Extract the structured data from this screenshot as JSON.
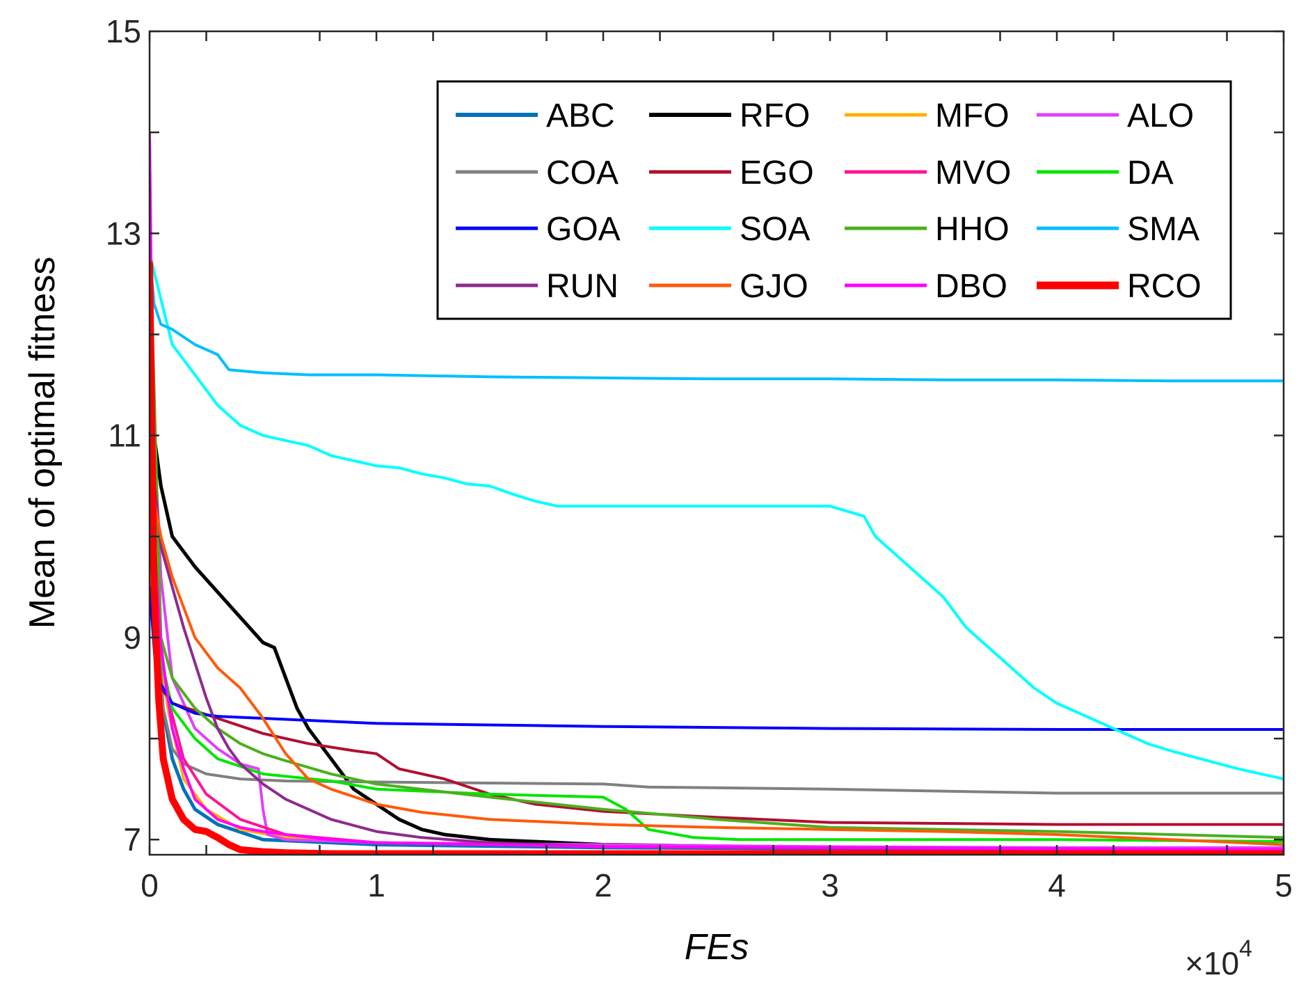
{
  "chart_data": {
    "type": "line",
    "title": "",
    "xlabel": "FEs",
    "ylabel": "Mean of optimal fitness",
    "x_exponent_label": "×10",
    "x_exponent_power": "4",
    "xlim": [
      0,
      5
    ],
    "ylim": [
      6.85,
      15
    ],
    "xticks": [
      0,
      1,
      2,
      3,
      4,
      5
    ],
    "xtick_labels": [
      "0",
      "1",
      "2",
      "3",
      "4",
      "5"
    ],
    "yticks": [
      7,
      9,
      11,
      13,
      15
    ],
    "ytick_labels": [
      "7",
      "9",
      "11",
      "13",
      "15"
    ],
    "ytick_minor": [
      8,
      10,
      12,
      14
    ],
    "grid": false,
    "legend_position": "top-right",
    "legend_columns": 4,
    "series": [
      {
        "name": "ABC",
        "color": "#0072BD",
        "width": 5,
        "x": [
          0,
          0.02,
          0.05,
          0.1,
          0.15,
          0.2,
          0.3,
          0.5,
          1,
          2,
          3,
          4,
          5
        ],
        "y": [
          11.5,
          9.5,
          8.4,
          7.8,
          7.5,
          7.3,
          7.15,
          7.0,
          6.95,
          6.92,
          6.91,
          6.9,
          6.9
        ]
      },
      {
        "name": "RFO",
        "color": "#000000",
        "width": 5,
        "x": [
          0,
          0.02,
          0.05,
          0.1,
          0.2,
          0.3,
          0.4,
          0.5,
          0.55,
          0.6,
          0.65,
          0.7,
          0.8,
          0.9,
          1.0,
          1.1,
          1.2,
          1.3,
          1.5,
          2,
          3,
          4,
          5
        ],
        "y": [
          12.0,
          11.0,
          10.5,
          10.0,
          9.7,
          9.45,
          9.2,
          8.95,
          8.9,
          8.6,
          8.3,
          8.1,
          7.8,
          7.5,
          7.35,
          7.2,
          7.1,
          7.05,
          7.0,
          6.95,
          6.92,
          6.91,
          6.9
        ]
      },
      {
        "name": "MFO",
        "color": "#FFB000",
        "width": 4,
        "x": [
          0,
          0.03,
          0.08,
          0.15,
          0.25,
          0.4,
          0.6,
          1,
          2,
          3,
          4,
          5
        ],
        "y": [
          10.5,
          9.2,
          8.3,
          7.6,
          7.3,
          7.1,
          7.02,
          6.97,
          6.93,
          6.91,
          6.9,
          6.9
        ]
      },
      {
        "name": "ALO",
        "color": "#E040FB",
        "width": 4,
        "x": [
          0,
          0.05,
          0.1,
          0.2,
          0.3,
          0.4,
          0.48,
          0.5,
          0.52,
          0.6,
          1,
          2,
          3,
          4,
          5
        ],
        "y": [
          12.0,
          9.6,
          8.6,
          8.1,
          7.9,
          7.75,
          7.7,
          7.3,
          7.05,
          7.0,
          6.97,
          6.95,
          6.93,
          6.92,
          6.92
        ]
      },
      {
        "name": "COA",
        "color": "#808080",
        "width": 4,
        "x": [
          0,
          0.03,
          0.06,
          0.1,
          0.15,
          0.25,
          0.4,
          0.6,
          1,
          2,
          2.2,
          3,
          4,
          5
        ],
        "y": [
          12.0,
          9.5,
          8.3,
          7.9,
          7.75,
          7.65,
          7.6,
          7.58,
          7.57,
          7.55,
          7.52,
          7.5,
          7.46,
          7.46
        ]
      },
      {
        "name": "EGO",
        "color": "#B01030",
        "width": 4,
        "x": [
          0,
          0.05,
          0.1,
          0.3,
          0.5,
          0.7,
          0.9,
          1.0,
          1.1,
          1.3,
          1.5,
          1.7,
          2.0,
          2.5,
          3,
          4,
          5
        ],
        "y": [
          10.0,
          8.5,
          8.35,
          8.2,
          8.05,
          7.95,
          7.88,
          7.85,
          7.7,
          7.6,
          7.45,
          7.35,
          7.28,
          7.22,
          7.17,
          7.15,
          7.15
        ]
      },
      {
        "name": "MVO",
        "color": "#FF1493",
        "width": 4,
        "x": [
          0,
          0.03,
          0.08,
          0.15,
          0.25,
          0.4,
          0.6,
          1,
          2,
          3,
          4,
          5
        ],
        "y": [
          11.0,
          9.3,
          8.4,
          7.8,
          7.45,
          7.2,
          7.05,
          6.97,
          6.93,
          6.91,
          6.9,
          6.9
        ]
      },
      {
        "name": "DA",
        "color": "#00E600",
        "width": 4,
        "x": [
          0,
          0.05,
          0.1,
          0.2,
          0.3,
          0.5,
          0.8,
          1.0,
          1.5,
          2.0,
          2.1,
          2.2,
          2.4,
          2.6,
          3,
          4,
          5
        ],
        "y": [
          11.0,
          8.8,
          8.3,
          8.0,
          7.8,
          7.65,
          7.58,
          7.5,
          7.45,
          7.42,
          7.3,
          7.1,
          7.02,
          7.0,
          7.0,
          7.0,
          6.98
        ]
      },
      {
        "name": "GOA",
        "color": "#0000FF",
        "width": 4,
        "x": [
          0,
          0.03,
          0.06,
          0.1,
          0.2,
          0.3,
          0.5,
          1,
          2,
          3,
          4,
          5
        ],
        "y": [
          9.5,
          8.6,
          8.5,
          8.35,
          8.25,
          8.22,
          8.2,
          8.15,
          8.12,
          8.1,
          8.09,
          8.09
        ]
      },
      {
        "name": "SOA",
        "color": "#00FFFF",
        "width": 4,
        "x": [
          0,
          0.1,
          0.2,
          0.3,
          0.4,
          0.5,
          0.6,
          0.7,
          0.8,
          0.9,
          1.0,
          1.1,
          1.2,
          1.3,
          1.4,
          1.5,
          1.6,
          1.7,
          1.8,
          2.0,
          2.5,
          3.0,
          3.15,
          3.2,
          3.3,
          3.4,
          3.5,
          3.6,
          3.7,
          3.8,
          3.9,
          4.0,
          4.1,
          4.2,
          4.3,
          4.4,
          4.5,
          4.6,
          4.7,
          4.8,
          4.9,
          5.0
        ],
        "y": [
          12.8,
          11.9,
          11.6,
          11.3,
          11.1,
          11.0,
          10.95,
          10.9,
          10.8,
          10.75,
          10.7,
          10.68,
          10.62,
          10.58,
          10.52,
          10.5,
          10.42,
          10.35,
          10.3,
          10.3,
          10.3,
          10.3,
          10.2,
          10.0,
          9.8,
          9.6,
          9.4,
          9.1,
          8.9,
          8.7,
          8.5,
          8.35,
          8.25,
          8.15,
          8.05,
          7.95,
          7.88,
          7.82,
          7.76,
          7.7,
          7.65,
          7.6
        ]
      },
      {
        "name": "HHO",
        "color": "#4CAF1F",
        "width": 4,
        "x": [
          0,
          0.05,
          0.1,
          0.2,
          0.3,
          0.4,
          0.5,
          0.6,
          0.8,
          1.0,
          1.5,
          2.0,
          2.5,
          3,
          4,
          5
        ],
        "y": [
          13.1,
          9.0,
          8.6,
          8.3,
          8.1,
          7.95,
          7.85,
          7.78,
          7.65,
          7.55,
          7.42,
          7.3,
          7.2,
          7.12,
          7.08,
          7.02
        ]
      },
      {
        "name": "SMA",
        "color": "#00BFFF",
        "width": 4,
        "x": [
          0,
          0.02,
          0.05,
          0.1,
          0.2,
          0.3,
          0.35,
          0.5,
          0.7,
          1.0,
          1.5,
          2.0,
          2.5,
          3.0,
          3.5,
          4.0,
          4.5,
          5.0
        ],
        "y": [
          12.8,
          12.3,
          12.1,
          12.05,
          11.9,
          11.8,
          11.65,
          11.62,
          11.6,
          11.6,
          11.58,
          11.57,
          11.56,
          11.56,
          11.55,
          11.55,
          11.54,
          11.54
        ]
      },
      {
        "name": "RUN",
        "color": "#8E2A8E",
        "width": 4,
        "x": [
          0,
          0.05,
          0.1,
          0.15,
          0.2,
          0.25,
          0.3,
          0.35,
          0.4,
          0.5,
          0.6,
          0.8,
          1.0,
          1.2,
          1.5,
          2,
          3,
          4,
          5
        ],
        "y": [
          11.0,
          9.9,
          9.5,
          9.1,
          8.75,
          8.4,
          8.1,
          7.9,
          7.75,
          7.55,
          7.4,
          7.2,
          7.08,
          7.02,
          6.97,
          6.93,
          6.91,
          6.9,
          6.9
        ]
      },
      {
        "name": "GJO",
        "color": "#FF5A0A",
        "width": 4,
        "x": [
          0,
          0.05,
          0.1,
          0.15,
          0.2,
          0.3,
          0.4,
          0.5,
          0.6,
          0.7,
          0.8,
          1.0,
          1.2,
          1.5,
          2.0,
          2.5,
          3.0,
          3.5,
          4.0,
          4.5,
          5.0
        ],
        "y": [
          10.6,
          10.0,
          9.6,
          9.3,
          9.0,
          8.7,
          8.5,
          8.2,
          7.85,
          7.6,
          7.5,
          7.35,
          7.27,
          7.2,
          7.15,
          7.12,
          7.1,
          7.08,
          7.05,
          7.0,
          6.95
        ]
      },
      {
        "name": "DBO",
        "color": "#FF00FF",
        "width": 4,
        "x": [
          0,
          0.02,
          0.05,
          0.1,
          0.15,
          0.2,
          0.3,
          0.4,
          0.5,
          0.6,
          0.8,
          1.0,
          1.5,
          2,
          3,
          4,
          5
        ],
        "y": [
          14.0,
          10.0,
          8.9,
          8.1,
          7.7,
          7.4,
          7.2,
          7.12,
          7.08,
          7.05,
          7.0,
          6.97,
          6.95,
          6.93,
          6.92,
          6.91,
          6.9
        ]
      },
      {
        "name": "RCO",
        "color": "#FF0000",
        "width": 10,
        "x": [
          0,
          0.01,
          0.02,
          0.04,
          0.06,
          0.1,
          0.15,
          0.2,
          0.25,
          0.3,
          0.35,
          0.4,
          0.5,
          0.6,
          0.8,
          1.0,
          2,
          3,
          4,
          5
        ],
        "y": [
          12.7,
          11.0,
          9.5,
          8.4,
          7.8,
          7.4,
          7.2,
          7.1,
          7.08,
          7.02,
          6.95,
          6.9,
          6.88,
          6.87,
          6.86,
          6.86,
          6.86,
          6.86,
          6.86,
          6.86
        ]
      }
    ]
  }
}
